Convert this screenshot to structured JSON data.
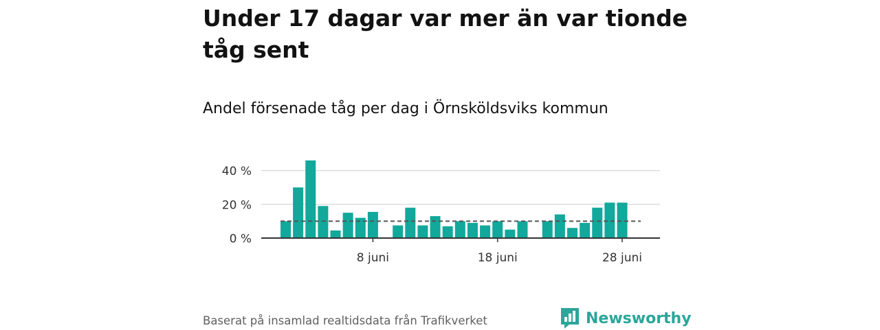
{
  "title": "Under 17 dagar var mer än var tionde tåg sent",
  "subtitle": "Andel försenade tåg per dag i Örnsköldsviks kommun",
  "footer": "Baserat på insamlad realtidsdata från Trafikverket",
  "logo": {
    "text": "Newsworthy",
    "icon": "bar-chart-speech-bubble-icon"
  },
  "colors": {
    "bar": "#12a89b",
    "reference": "#555555",
    "grid": "#dddddd",
    "axis": "#333333",
    "logo": "#2ba69a"
  },
  "chart_data": {
    "type": "bar",
    "x": [
      1,
      2,
      3,
      4,
      5,
      6,
      7,
      8,
      9,
      10,
      11,
      12,
      13,
      14,
      15,
      16,
      17,
      18,
      19,
      20,
      21,
      22,
      23,
      24,
      25,
      26,
      27,
      28,
      29,
      30
    ],
    "values": [
      10,
      30,
      46,
      19,
      4.5,
      15,
      12,
      15.5,
      0,
      7.5,
      18,
      7.5,
      13,
      7,
      10,
      9,
      7.5,
      10,
      5,
      10,
      0,
      10,
      14,
      6,
      9,
      18,
      21,
      21,
      null,
      null
    ],
    "x_ticks": [
      8,
      18,
      28
    ],
    "x_tick_labels": [
      "8 juni",
      "18 juni",
      "28 juni"
    ],
    "y_ticks": [
      0,
      20,
      40
    ],
    "y_tick_labels": [
      "0 %",
      "20 %",
      "40 %"
    ],
    "ylim": [
      0,
      50
    ],
    "xlim": [
      0.5,
      30.5
    ],
    "reference_line": 10,
    "reference_line_style": "dashed",
    "grid": true,
    "xlabel": "",
    "ylabel": ""
  }
}
